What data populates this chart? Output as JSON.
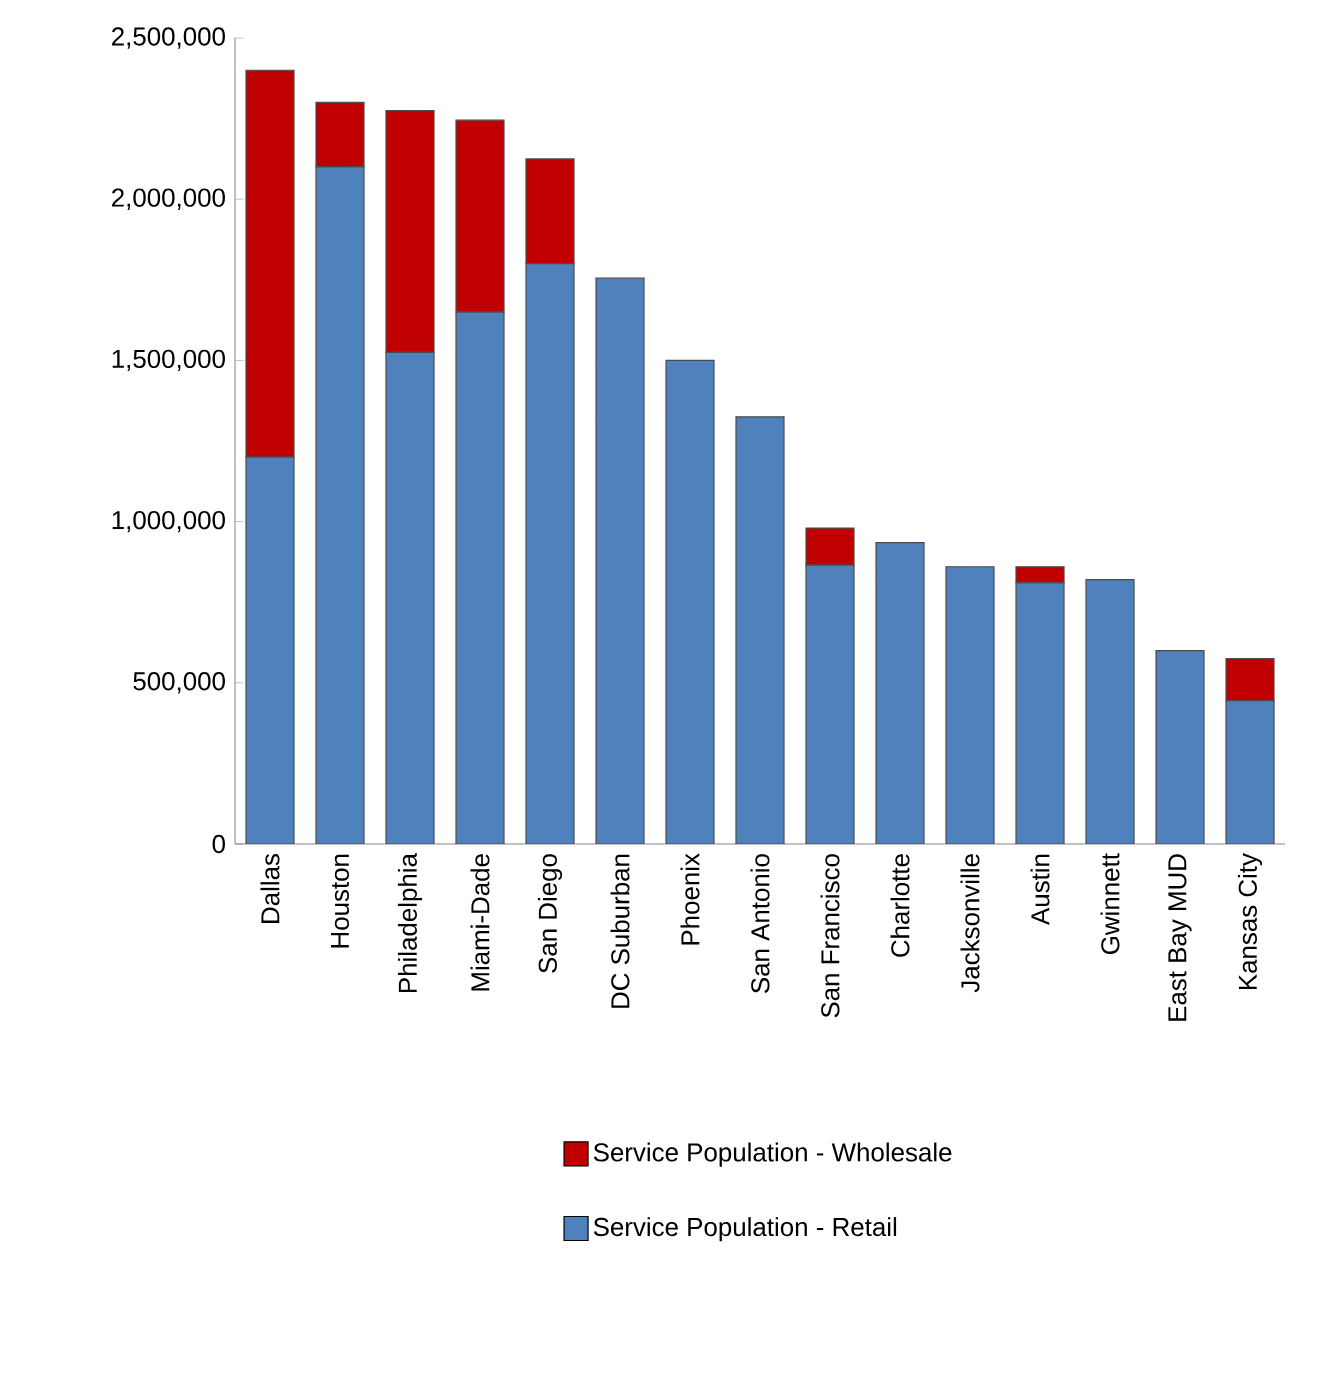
{
  "chart_data": {
    "type": "bar",
    "stacked": true,
    "categories": [
      "Dallas",
      "Houston",
      "Philadelphia",
      "Miami-Dade",
      "San Diego",
      "DC Suburban",
      "Phoenix",
      "San Antonio",
      "San Francisco",
      "Charlotte",
      "Jacksonville",
      "Austin",
      "Gwinnett",
      "East Bay MUD",
      "Kansas City"
    ],
    "series": [
      {
        "name": "Service Population - Retail",
        "color": "#4f81bd",
        "values": [
          1200000,
          2100000,
          1525000,
          1650000,
          1800000,
          1755000,
          1500000,
          1325000,
          865000,
          935000,
          860000,
          810000,
          820000,
          600000,
          445000
        ]
      },
      {
        "name": "Service Population - Wholesale",
        "color": "#c00000",
        "values": [
          1200000,
          200000,
          750000,
          595000,
          325000,
          null,
          null,
          null,
          115000,
          null,
          null,
          50000,
          null,
          null,
          130000
        ]
      }
    ],
    "ylim": [
      0,
      2500000
    ],
    "yticks": [
      {
        "value": 0,
        "label": "0"
      },
      {
        "value": 500000,
        "label": "500,000"
      },
      {
        "value": 1000000,
        "label": "1,000,000"
      },
      {
        "value": 1500000,
        "label": "1,500,000"
      },
      {
        "value": 2000000,
        "label": "2,000,000"
      },
      {
        "value": 2500000,
        "label": "2,500,000"
      }
    ],
    "legend": "bottom"
  }
}
